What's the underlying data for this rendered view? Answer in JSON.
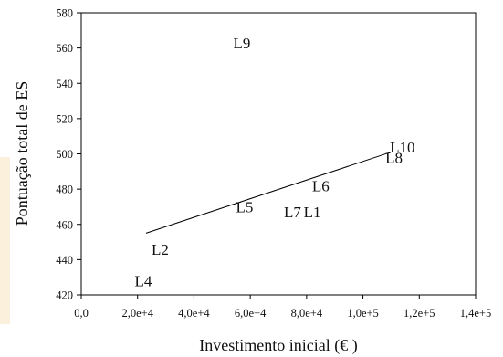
{
  "chart_data": {
    "type": "scatter",
    "title": "",
    "xlabel": "Investimento   inicial (€ )",
    "ylabel": "Pontuação   total de  ES",
    "xlim": [
      0,
      140000
    ],
    "ylim": [
      420,
      580
    ],
    "x_ticks": [
      0,
      20000,
      40000,
      60000,
      80000,
      100000,
      120000,
      140000
    ],
    "x_tick_labels": [
      "0,0",
      "2,0e+4",
      "4,0e+4",
      "6,0e+4",
      "8,0e+4",
      "1,0e+5",
      "1,2e+5",
      "1,4e+5"
    ],
    "y_ticks": [
      420,
      440,
      460,
      480,
      500,
      520,
      540,
      560,
      580
    ],
    "y_tick_labels": [
      "420",
      "440",
      "460",
      "480",
      "500",
      "520",
      "540",
      "560",
      "580"
    ],
    "grid": false,
    "points": [
      {
        "label": "L9",
        "x": 57000,
        "y": 563
      },
      {
        "label": "L10",
        "x": 114000,
        "y": 504
      },
      {
        "label": "L8",
        "x": 111000,
        "y": 498
      },
      {
        "label": "L6",
        "x": 85000,
        "y": 482
      },
      {
        "label": "L5",
        "x": 58000,
        "y": 470
      },
      {
        "label": "L7",
        "x": 75000,
        "y": 467
      },
      {
        "label": "L1",
        "x": 82000,
        "y": 467
      },
      {
        "label": "L2",
        "x": 28000,
        "y": 446
      },
      {
        "label": "L4",
        "x": 22000,
        "y": 428
      }
    ],
    "trendline": {
      "x": [
        23000,
        110000
      ],
      "y": [
        455,
        501
      ]
    }
  }
}
